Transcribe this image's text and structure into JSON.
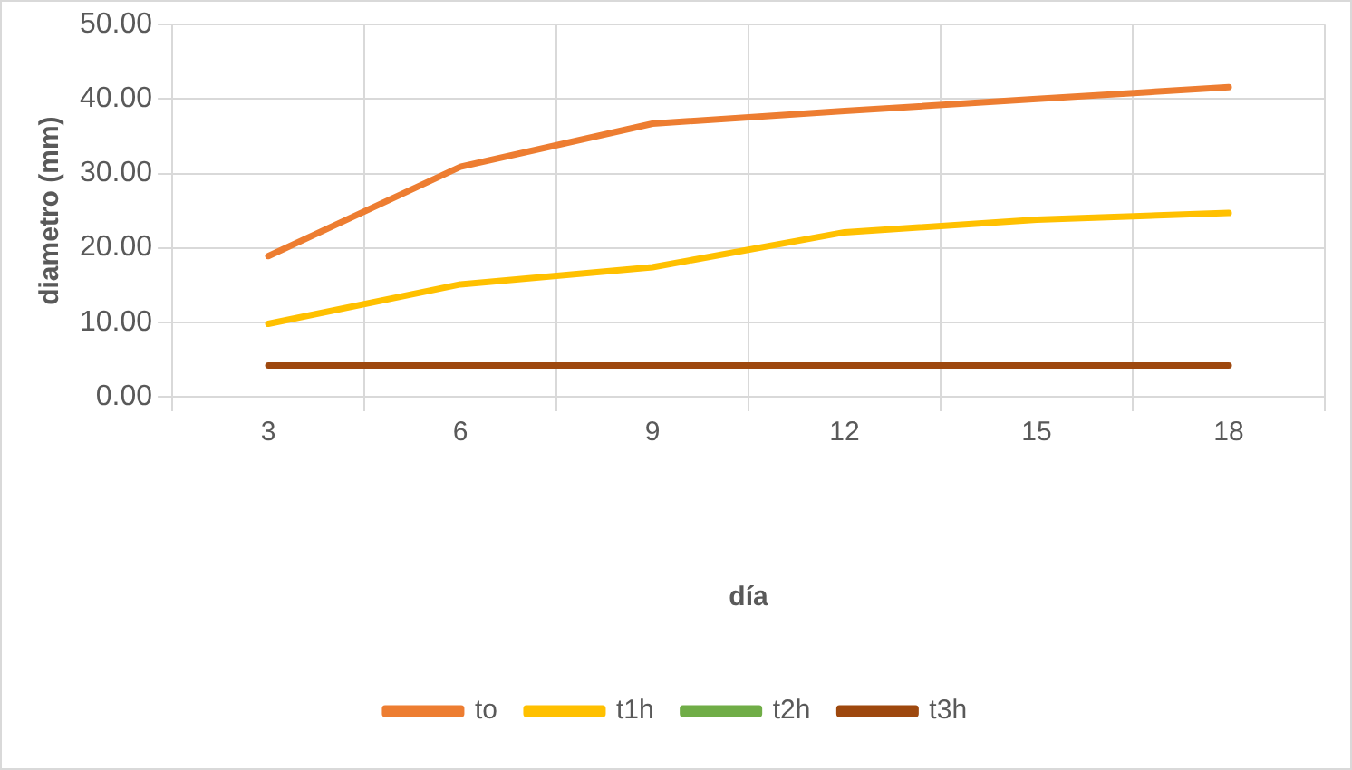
{
  "chart_data": {
    "type": "line",
    "xlabel": "día",
    "ylabel": "diametro (mm)",
    "categories": [
      "3",
      "6",
      "9",
      "12",
      "15",
      "18"
    ],
    "series": [
      {
        "name": "to",
        "color": "#ed7d31",
        "values": [
          18.9,
          30.9,
          36.7,
          38.4,
          40.0,
          41.6
        ]
      },
      {
        "name": "t1h",
        "color": "#ffc000",
        "values": [
          9.8,
          15.1,
          17.4,
          22.1,
          23.8,
          24.7
        ]
      },
      {
        "name": "t2h",
        "color": "#70ad47",
        "values": [
          null,
          null,
          null,
          null,
          null,
          null
        ]
      },
      {
        "name": "t3h",
        "color": "#9e480e",
        "values": [
          4.2,
          4.2,
          4.2,
          4.2,
          4.2,
          4.2
        ]
      }
    ],
    "ylim": [
      0,
      50
    ],
    "yticks": [
      {
        "value": 0,
        "label": "0.00"
      },
      {
        "value": 10,
        "label": "10.00"
      },
      {
        "value": 20,
        "label": "20.00"
      },
      {
        "value": 30,
        "label": "30.00"
      },
      {
        "value": 40,
        "label": "40.00"
      },
      {
        "value": 50,
        "label": "50.00"
      }
    ],
    "grid": true,
    "legend": "bottom",
    "marker": "none",
    "line_style": "solid"
  }
}
